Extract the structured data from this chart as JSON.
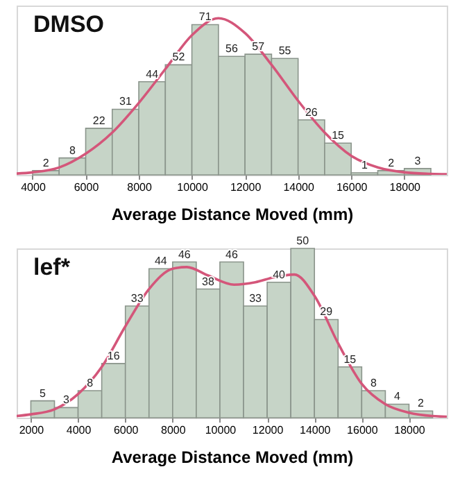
{
  "chart_data": [
    {
      "type": "histogram",
      "title": "DMSO",
      "xlabel": "Average Distance Moved (mm)",
      "bins": [
        4000,
        5000,
        6000,
        7000,
        8000,
        9000,
        10000,
        11000,
        12000,
        13000,
        14000,
        15000,
        16000,
        17000,
        18000,
        19000
      ],
      "values": [
        2,
        8,
        22,
        31,
        44,
        52,
        71,
        56,
        57,
        55,
        26,
        15,
        1,
        2,
        3
      ],
      "value_labels": [
        "2",
        "8",
        "22",
        "31",
        "44",
        "52",
        "71",
        "56",
        "57",
        "55",
        "26",
        "15",
        "1",
        "2",
        "3"
      ],
      "color": "#c6d4c7",
      "xlim": [
        3400,
        19600
      ],
      "xticks": [
        4000,
        6000,
        8000,
        10000,
        12000,
        14000,
        16000,
        18000
      ],
      "grid": false,
      "series": [
        {
          "type": "line",
          "color": "#d4567a",
          "x": [
            3400,
            4000,
            5000,
            6000,
            7000,
            8000,
            9000,
            10000,
            11000,
            12000,
            13000,
            14000,
            15000,
            16000,
            17000,
            18000,
            19000,
            19600
          ],
          "values": [
            0.6,
            1.2,
            3.5,
            10,
            20,
            34,
            50,
            66,
            74,
            67,
            52,
            35,
            20,
            9,
            3.5,
            1.2,
            0.5,
            0.3
          ]
        }
      ]
    },
    {
      "type": "histogram",
      "title": "lef*",
      "xlabel": "Average Distance Moved (mm)",
      "bins": [
        2000,
        3000,
        4000,
        5000,
        6000,
        7000,
        8000,
        9000,
        10000,
        11000,
        12000,
        13000,
        14000,
        15000,
        16000,
        17000,
        18000,
        19000
      ],
      "values": [
        5,
        3,
        8,
        16,
        33,
        44,
        46,
        38,
        46,
        33,
        40,
        50,
        29,
        15,
        8,
        4,
        2
      ],
      "value_labels": [
        "5",
        "3",
        "8",
        "16",
        "33",
        "44",
        "46",
        "38",
        "46",
        "33",
        "40",
        "50",
        "29",
        "15",
        "8",
        "4",
        "2"
      ],
      "color": "#c6d4c7",
      "xlim": [
        1400,
        19600
      ],
      "xticks": [
        2000,
        4000,
        6000,
        8000,
        10000,
        12000,
        14000,
        16000,
        18000
      ],
      "grid": false,
      "series": [
        {
          "type": "line",
          "color": "#d4567a",
          "x": [
            1400,
            2000,
            3000,
            4000,
            5000,
            6000,
            7000,
            8000,
            8600,
            9500,
            10600,
            11500,
            12300,
            13150,
            14000,
            15000,
            16000,
            17000,
            18000,
            19000,
            19600
          ],
          "values": [
            0.5,
            1,
            2.5,
            7,
            15,
            27,
            38,
            44,
            44.5,
            42,
            39.3,
            40,
            41.5,
            42.3,
            36,
            22,
            10,
            4,
            1.5,
            0.5,
            0.3
          ]
        }
      ]
    }
  ]
}
